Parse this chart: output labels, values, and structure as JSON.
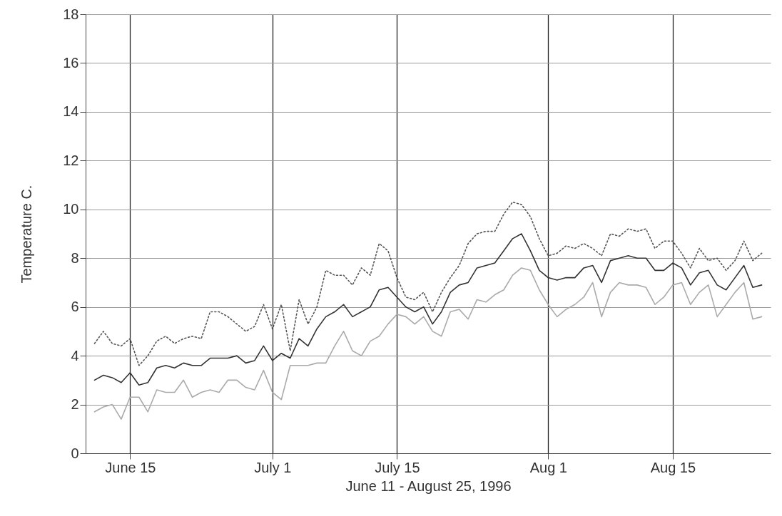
{
  "chart_data": {
    "type": "line",
    "xlabel": "June 11 - August 25, 1996",
    "ylabel": "Temperature C.",
    "x": [
      "1996-06-11",
      "1996-06-12",
      "1996-06-13",
      "1996-06-14",
      "1996-06-15",
      "1996-06-16",
      "1996-06-17",
      "1996-06-18",
      "1996-06-19",
      "1996-06-20",
      "1996-06-21",
      "1996-06-22",
      "1996-06-23",
      "1996-06-24",
      "1996-06-25",
      "1996-06-26",
      "1996-06-27",
      "1996-06-28",
      "1996-06-29",
      "1996-06-30",
      "1996-07-01",
      "1996-07-02",
      "1996-07-03",
      "1996-07-04",
      "1996-07-05",
      "1996-07-06",
      "1996-07-07",
      "1996-07-08",
      "1996-07-09",
      "1996-07-10",
      "1996-07-11",
      "1996-07-12",
      "1996-07-13",
      "1996-07-14",
      "1996-07-15",
      "1996-07-16",
      "1996-07-17",
      "1996-07-18",
      "1996-07-19",
      "1996-07-20",
      "1996-07-21",
      "1996-07-22",
      "1996-07-23",
      "1996-07-24",
      "1996-07-25",
      "1996-07-26",
      "1996-07-27",
      "1996-07-28",
      "1996-07-29",
      "1996-07-30",
      "1996-07-31",
      "1996-08-01",
      "1996-08-02",
      "1996-08-03",
      "1996-08-04",
      "1996-08-05",
      "1996-08-06",
      "1996-08-07",
      "1996-08-08",
      "1996-08-09",
      "1996-08-10",
      "1996-08-11",
      "1996-08-12",
      "1996-08-13",
      "1996-08-14",
      "1996-08-15",
      "1996-08-16",
      "1996-08-17",
      "1996-08-18",
      "1996-08-19",
      "1996-08-20",
      "1996-08-21",
      "1996-08-22",
      "1996-08-23",
      "1996-08-24",
      "1996-08-25"
    ],
    "series": [
      {
        "color": "#555555",
        "line_style": "dotted",
        "values": [
          4.5,
          5.0,
          4.5,
          4.4,
          4.7,
          3.6,
          4.0,
          4.6,
          4.8,
          4.5,
          4.7,
          4.8,
          4.7,
          5.8,
          5.8,
          5.6,
          5.3,
          5.0,
          5.2,
          6.1,
          5.1,
          6.1,
          4.2,
          6.3,
          5.3,
          6.0,
          7.5,
          7.3,
          7.3,
          6.9,
          7.6,
          7.3,
          8.6,
          8.3,
          7.2,
          6.4,
          6.3,
          6.6,
          5.8,
          6.6,
          7.2,
          7.7,
          8.6,
          9.0,
          9.1,
          9.1,
          9.8,
          10.3,
          10.2,
          9.7,
          8.8,
          8.1,
          8.2,
          8.5,
          8.4,
          8.6,
          8.4,
          8.1,
          9.0,
          8.9,
          9.2,
          9.1,
          9.2,
          8.4,
          8.7,
          8.7,
          8.2,
          7.6,
          8.4,
          7.9,
          8.0,
          7.5,
          7.9,
          8.7,
          7.9,
          8.2
        ]
      },
      {
        "color": "#333333",
        "line_style": "solid",
        "values": [
          3.0,
          3.2,
          3.1,
          2.9,
          3.3,
          2.8,
          2.9,
          3.5,
          3.6,
          3.5,
          3.7,
          3.6,
          3.6,
          3.9,
          3.9,
          3.9,
          4.0,
          3.7,
          3.8,
          4.4,
          3.8,
          4.1,
          3.9,
          4.7,
          4.4,
          5.1,
          5.6,
          5.8,
          6.1,
          5.6,
          5.8,
          6.0,
          6.7,
          6.8,
          6.4,
          6.0,
          5.8,
          6.0,
          5.3,
          5.8,
          6.6,
          6.9,
          7.0,
          7.6,
          7.7,
          7.8,
          8.3,
          8.8,
          9.0,
          8.3,
          7.5,
          7.2,
          7.1,
          7.2,
          7.2,
          7.6,
          7.7,
          7.0,
          7.9,
          8.0,
          8.1,
          8.0,
          8.0,
          7.5,
          7.5,
          7.8,
          7.6,
          6.9,
          7.4,
          7.5,
          6.9,
          6.7,
          7.2,
          7.7,
          6.8,
          6.9
        ]
      },
      {
        "color": "#aaaaaa",
        "line_style": "solid",
        "values": [
          1.7,
          1.9,
          2.0,
          1.4,
          2.3,
          2.3,
          1.7,
          2.6,
          2.5,
          2.5,
          3.0,
          2.3,
          2.5,
          2.6,
          2.5,
          3.0,
          3.0,
          2.7,
          2.6,
          3.4,
          2.5,
          2.2,
          3.6,
          3.6,
          3.6,
          3.7,
          3.7,
          4.4,
          5.0,
          4.2,
          4.0,
          4.6,
          4.8,
          5.3,
          5.7,
          5.6,
          5.3,
          5.6,
          5.0,
          4.8,
          5.8,
          5.9,
          5.5,
          6.3,
          6.2,
          6.5,
          6.7,
          7.3,
          7.6,
          7.5,
          6.7,
          6.1,
          5.6,
          5.9,
          6.1,
          6.4,
          7.0,
          5.6,
          6.6,
          7.0,
          6.9,
          6.9,
          6.8,
          6.1,
          6.4,
          6.9,
          7.0,
          6.1,
          6.6,
          6.9,
          5.6,
          6.1,
          6.6,
          7.0,
          5.5,
          5.6
        ]
      }
    ],
    "xlim": [
      "1996-06-10",
      "1996-08-26"
    ],
    "xticks": [
      {
        "value": "1996-06-15",
        "label": "June 15"
      },
      {
        "value": "1996-07-01",
        "label": "July 1"
      },
      {
        "value": "1996-07-15",
        "label": "July 15"
      },
      {
        "value": "1996-08-01",
        "label": "Aug 1"
      },
      {
        "value": "1996-08-15",
        "label": "Aug 15"
      }
    ],
    "ylim": [
      0,
      18
    ],
    "yticks": [
      0,
      2,
      4,
      6,
      8,
      10,
      12,
      14,
      16,
      18
    ],
    "grid": true
  }
}
